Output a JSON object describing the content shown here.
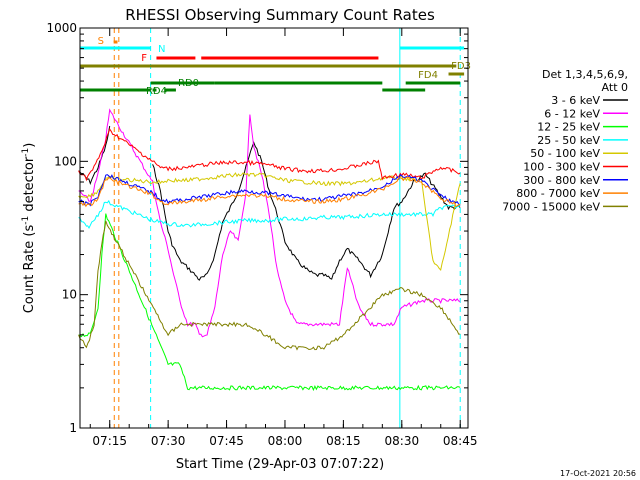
{
  "chart_data": {
    "type": "line",
    "title": "RHESSI Observing Summary Count Rates",
    "xlabel": "Start Time (29-Apr-03 07:07:22)",
    "ylabel_main": "Count Rate (s",
    "ylabel_sup": "-1",
    "ylabel_rest": " detector",
    "ylabel_sup2": "-1",
    "ylabel_close": ")",
    "yscale": "log",
    "xlim": [
      "07:07:22",
      "08:47:00"
    ],
    "ylim": [
      1,
      1000
    ],
    "xticks": [
      "07:15",
      "07:30",
      "07:45",
      "08:00",
      "08:15",
      "08:30",
      "08:45"
    ],
    "yticks": [
      "1",
      "10",
      "100",
      "1000"
    ],
    "timestamp": "17-Oct-2021 20:56",
    "legend": {
      "placement": "right",
      "header": [
        "Det 1,3,4,5,6,9,",
        "Att 0"
      ],
      "entries": [
        {
          "label": "3 - 6 keV",
          "color": "#000000"
        },
        {
          "label": "6 - 12 keV",
          "color": "#ff00ff"
        },
        {
          "label": "12 - 25 keV",
          "color": "#00ff00"
        },
        {
          "label": "25 - 50 keV",
          "color": "#00ffff"
        },
        {
          "label": "50 - 100 keV",
          "color": "#d4c800"
        },
        {
          "label": "100 - 300 keV",
          "color": "#ff0000"
        },
        {
          "label": "300 - 800 keV",
          "color": "#0000ff"
        },
        {
          "label": "800 - 7000 keV",
          "color": "#ff8000"
        },
        {
          "label": "7000 - 15000 keV",
          "color": "#808000"
        }
      ]
    },
    "flag_bars": [
      {
        "label": "S",
        "color": "#ff8000",
        "segments": [
          [
            "07:16:00",
            "07:17:00"
          ]
        ]
      },
      {
        "label": "N",
        "color": "#00ffff",
        "segments": [
          [
            "07:07:22",
            "07:25:30"
          ],
          [
            "08:29:30",
            "08:46:00"
          ]
        ]
      },
      {
        "label": "F",
        "color": "#ff0000",
        "segments": [
          [
            "07:27:00",
            "07:37:00"
          ],
          [
            "07:38:30",
            "08:24:00"
          ]
        ]
      },
      {
        "label": "FD3",
        "color": "#808000",
        "segments": [
          [
            "07:07:22",
            "08:44:00"
          ]
        ]
      },
      {
        "label": "FD4",
        "color": "#808000",
        "segments": [
          [
            "08:42:00",
            "08:46:00"
          ]
        ]
      },
      {
        "label": "RD0",
        "color": "#008000",
        "segments": [
          [
            "07:25:30",
            "07:42:00"
          ],
          [
            "07:42:00",
            "08:25:00"
          ],
          [
            "08:31:00",
            "08:45:00"
          ]
        ]
      },
      {
        "label": "RD4",
        "color": "#008000",
        "segments": [
          [
            "07:07:22",
            "07:25:30"
          ],
          [
            "07:26:00",
            "07:27:00"
          ],
          [
            "07:29:00",
            "07:32:00"
          ],
          [
            "08:25:00",
            "08:36:00"
          ]
        ]
      }
    ],
    "vertical_markers": [
      {
        "time": "07:16:10",
        "color": "#ff8000",
        "style": "dashed"
      },
      {
        "time": "07:17:20",
        "color": "#ff8000",
        "style": "dashed"
      },
      {
        "time": "07:25:30",
        "color": "#00ffff",
        "style": "dashed"
      },
      {
        "time": "08:29:30",
        "color": "#00ffff",
        "style": "solid"
      },
      {
        "time": "08:45:00",
        "color": "#00ffff",
        "style": "dashed"
      }
    ],
    "series": [
      {
        "name": "3 - 6 keV",
        "color": "#000000",
        "x": [
          "07:07",
          "07:10",
          "07:12",
          "07:14",
          "07:15",
          "07:17",
          "07:19",
          "07:21",
          "07:23",
          "07:25",
          "07:26",
          "07:28",
          "07:30",
          "07:31",
          "07:33",
          "07:35",
          "07:37",
          "07:38",
          "07:40",
          "07:42",
          "07:44",
          "07:46",
          "07:48",
          "07:50",
          "07:52",
          "07:54",
          "07:56",
          "07:58",
          "08:00",
          "08:03",
          "08:06",
          "08:08",
          "08:10",
          "08:12",
          "08:14",
          "08:16",
          "08:19",
          "08:22",
          "08:25",
          "08:28",
          "08:30",
          "08:33",
          "08:36",
          "08:39",
          "08:42",
          "08:45"
        ],
        "y": [
          85,
          70,
          90,
          130,
          180,
          null,
          null,
          null,
          null,
          null,
          95,
          60,
          30,
          24,
          18,
          16,
          14,
          13,
          14,
          20,
          35,
          45,
          60,
          90,
          140,
          100,
          60,
          40,
          25,
          18,
          15,
          14,
          14,
          13,
          18,
          22,
          18,
          14,
          20,
          45,
          50,
          70,
          80,
          60,
          45,
          45
        ]
      },
      {
        "name": "6 - 12 keV",
        "color": "#ff00ff",
        "x": [
          "07:07",
          "07:10",
          "07:12",
          "07:14",
          "07:15",
          "07:26",
          "07:28",
          "07:30",
          "07:31",
          "07:33",
          "07:35",
          "07:37",
          "07:38",
          "07:40",
          "07:42",
          "07:44",
          "07:46",
          "07:48",
          "07:50",
          "07:51",
          "07:52",
          "07:54",
          "07:56",
          "07:58",
          "08:00",
          "08:03",
          "08:06",
          "08:10",
          "08:14",
          "08:16",
          "08:19",
          "08:22",
          "08:25",
          "08:28",
          "08:30",
          "08:35",
          "08:40",
          "08:45"
        ],
        "y": [
          60,
          50,
          80,
          150,
          240,
          70,
          35,
          22,
          16,
          9,
          6,
          6,
          5,
          5,
          8,
          20,
          30,
          25,
          60,
          230,
          130,
          80,
          40,
          15,
          9,
          6,
          6,
          6,
          6,
          16,
          8,
          6,
          6,
          6,
          8,
          9,
          9,
          9
        ]
      },
      {
        "name": "12 - 25 keV",
        "color": "#00ff00",
        "x": [
          "07:07",
          "07:10",
          "07:12",
          "07:13",
          "07:14",
          "07:30",
          "07:33",
          "07:35",
          "07:40",
          "07:45",
          "07:50",
          "07:55",
          "08:00",
          "08:05",
          "08:10",
          "08:15",
          "08:20",
          "08:25",
          "08:30",
          "08:35",
          "08:40",
          "08:45"
        ],
        "y": [
          5,
          5,
          8,
          20,
          40,
          3,
          3,
          2,
          2,
          2,
          2,
          2,
          2,
          2,
          2,
          2,
          2,
          2,
          2,
          2,
          2,
          2
        ]
      },
      {
        "name": "25 - 50 keV",
        "color": "#00ffff",
        "x": [
          "07:07",
          "07:09",
          "07:10",
          "07:12",
          "07:14",
          "07:26",
          "07:30",
          "07:35",
          "07:40",
          "07:45",
          "07:50",
          "07:55",
          "08:00",
          "08:05",
          "08:10",
          "08:15",
          "08:20",
          "08:25",
          "08:30",
          "08:35",
          "08:38",
          "08:40",
          "08:45"
        ],
        "y": [
          38,
          32,
          33,
          40,
          50,
          36,
          34,
          33,
          34,
          35,
          36,
          36,
          37,
          37,
          38,
          38,
          39,
          40,
          40,
          40,
          40,
          45,
          46
        ]
      },
      {
        "name": "50 - 100 keV",
        "color": "#d4c800",
        "x": [
          "07:07",
          "07:10",
          "07:12",
          "07:14",
          "07:26",
          "07:28",
          "07:30",
          "07:35",
          "07:40",
          "07:45",
          "07:50",
          "07:55",
          "08:00",
          "08:05",
          "08:10",
          "08:15",
          "08:20",
          "08:25",
          "08:30",
          "08:35",
          "08:38",
          "08:40",
          "08:45"
        ],
        "y": [
          55,
          55,
          60,
          75,
          70,
          70,
          72,
          72,
          75,
          78,
          80,
          78,
          72,
          70,
          68,
          68,
          70,
          75,
          75,
          72,
          18,
          15,
          70
        ]
      },
      {
        "name": "100 - 300 keV",
        "color": "#ff0000",
        "x": [
          "07:07",
          "07:09",
          "07:11",
          "07:13",
          "07:15",
          "07:26",
          "07:28",
          "07:30",
          "07:35",
          "07:40",
          "07:45",
          "07:50",
          "07:55",
          "08:00",
          "08:05",
          "08:10",
          "08:15",
          "08:20",
          "08:24",
          "08:25",
          "08:30",
          "08:35",
          "08:40",
          "08:45"
        ],
        "y": [
          85,
          75,
          90,
          120,
          170,
          100,
          90,
          88,
          90,
          95,
          98,
          98,
          95,
          88,
          85,
          85,
          88,
          95,
          100,
          75,
          80,
          75,
          90,
          82
        ]
      },
      {
        "name": "300 - 800 keV",
        "color": "#0000ff",
        "x": [
          "07:07",
          "07:10",
          "07:12",
          "07:14",
          "07:26",
          "07:28",
          "07:30",
          "07:35",
          "07:40",
          "07:45",
          "07:50",
          "07:55",
          "08:00",
          "08:05",
          "08:10",
          "08:15",
          "08:20",
          "08:25",
          "08:30",
          "08:35",
          "08:40",
          "08:45"
        ],
        "y": [
          50,
          48,
          55,
          80,
          58,
          52,
          50,
          52,
          55,
          58,
          60,
          58,
          55,
          52,
          52,
          55,
          58,
          65,
          78,
          72,
          55,
          47
        ]
      },
      {
        "name": "800 - 7000 keV",
        "color": "#ff8000",
        "x": [
          "07:07",
          "07:10",
          "07:12",
          "07:14",
          "07:26",
          "07:28",
          "07:30",
          "07:35",
          "07:40",
          "07:45",
          "07:50",
          "07:55",
          "08:00",
          "08:05",
          "08:10",
          "08:15",
          "08:20",
          "08:25",
          "08:30",
          "08:35",
          "08:40",
          "08:45"
        ],
        "y": [
          48,
          47,
          52,
          75,
          56,
          50,
          48,
          50,
          52,
          55,
          56,
          55,
          52,
          50,
          50,
          52,
          56,
          62,
          75,
          70,
          53,
          46
        ]
      },
      {
        "name": "7000 - 15000 keV",
        "color": "#808000",
        "x": [
          "07:07",
          "07:09",
          "07:11",
          "07:12",
          "07:13",
          "07:14",
          "07:30",
          "07:33",
          "07:36",
          "07:40",
          "07:45",
          "07:50",
          "07:55",
          "08:00",
          "08:05",
          "08:10",
          "08:15",
          "08:20",
          "08:25",
          "08:30",
          "08:35",
          "08:40",
          "08:45"
        ],
        "y": [
          5,
          4,
          6,
          15,
          25,
          35,
          5,
          6,
          6,
          6,
          6,
          6,
          5,
          4,
          4,
          4,
          5,
          7,
          10,
          11,
          10,
          8,
          5
        ]
      }
    ]
  }
}
